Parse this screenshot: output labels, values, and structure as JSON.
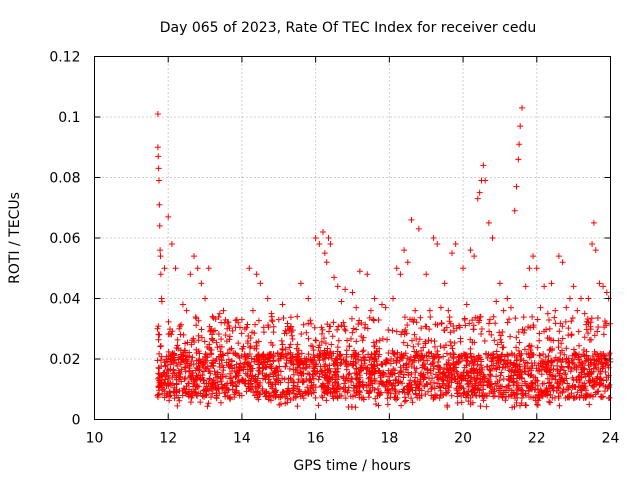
{
  "chart_data": {
    "type": "scatter",
    "title": "Day 065 of 2023, Rate Of TEC Index for receiver cedu",
    "xlabel": "GPS time / hours",
    "ylabel": "ROTI / TECUs",
    "xlim": [
      10,
      24
    ],
    "ylim": [
      0,
      0.12
    ],
    "x_ticks": [
      10,
      12,
      14,
      16,
      18,
      20,
      22,
      24
    ],
    "x_tick_labels": [
      "10",
      "12",
      "14",
      "16",
      "18",
      "20",
      "22",
      "24"
    ],
    "y_ticks": [
      0,
      0.02,
      0.04,
      0.06,
      0.08,
      0.1,
      0.12
    ],
    "y_tick_labels": [
      "0",
      "0.02",
      "0.04",
      "0.06",
      "0.08",
      "0.1",
      "0.12"
    ],
    "grid": true,
    "marker": "+",
    "color": "#ff0000",
    "series": [
      {
        "name": "ROTI",
        "x": [
          11.72,
          11.72,
          11.73,
          11.74,
          11.75,
          11.76,
          11.77,
          11.78,
          11.79,
          11.8,
          11.82,
          11.83,
          11.9,
          12.0,
          12.1,
          12.2,
          12.3,
          12.6,
          12.7,
          12.8,
          12.9,
          13.0,
          13.1,
          13.4,
          13.6,
          13.9,
          14.2,
          14.4,
          14.5,
          14.7,
          15.0,
          15.3,
          15.6,
          15.8,
          16.0,
          16.1,
          16.2,
          16.25,
          16.3,
          16.35,
          16.4,
          16.5,
          16.6,
          16.8,
          17.0,
          17.2,
          17.4,
          17.6,
          17.9,
          18.2,
          18.3,
          18.4,
          18.5,
          18.6,
          18.8,
          19.0,
          19.2,
          19.3,
          19.5,
          19.7,
          19.8,
          20.0,
          20.2,
          20.3,
          20.4,
          20.45,
          20.5,
          20.55,
          20.6,
          20.7,
          20.8,
          21.0,
          21.2,
          21.4,
          21.45,
          21.5,
          21.52,
          21.55,
          21.6,
          21.7,
          21.8,
          21.9,
          22.0,
          22.2,
          22.4,
          22.6,
          22.7,
          22.9,
          23.0,
          23.2,
          23.4,
          23.5,
          23.55,
          23.6,
          23.7,
          23.8,
          23.9,
          23.95,
          12.4,
          12.5,
          13.2,
          13.5,
          14.0,
          14.3,
          14.8,
          15.1,
          15.5,
          16.7,
          17.1,
          17.5,
          17.8,
          18.1,
          18.7,
          19.1,
          19.4,
          19.6,
          20.1,
          20.9,
          21.1,
          21.3,
          22.1,
          22.3,
          22.5,
          22.8,
          23.1,
          23.3
        ],
        "y": [
          0.101,
          0.09,
          0.087,
          0.083,
          0.079,
          0.071,
          0.064,
          0.056,
          0.054,
          0.048,
          0.04,
          0.039,
          0.05,
          0.067,
          0.058,
          0.05,
          0.03,
          0.048,
          0.054,
          0.05,
          0.045,
          0.04,
          0.05,
          0.035,
          0.03,
          0.032,
          0.05,
          0.048,
          0.045,
          0.04,
          0.033,
          0.03,
          0.045,
          0.04,
          0.06,
          0.058,
          0.062,
          0.055,
          0.052,
          0.06,
          0.058,
          0.047,
          0.044,
          0.043,
          0.042,
          0.049,
          0.048,
          0.04,
          0.037,
          0.05,
          0.048,
          0.056,
          0.052,
          0.066,
          0.063,
          0.048,
          0.06,
          0.058,
          0.045,
          0.055,
          0.058,
          0.05,
          0.056,
          0.054,
          0.073,
          0.075,
          0.079,
          0.084,
          0.079,
          0.065,
          0.06,
          0.045,
          0.04,
          0.069,
          0.077,
          0.086,
          0.091,
          0.097,
          0.103,
          0.044,
          0.05,
          0.054,
          0.05,
          0.044,
          0.045,
          0.054,
          0.052,
          0.04,
          0.044,
          0.04,
          0.04,
          0.058,
          0.065,
          0.056,
          0.045,
          0.044,
          0.042,
          0.04,
          0.038,
          0.036,
          0.034,
          0.036,
          0.033,
          0.036,
          0.035,
          0.038,
          0.034,
          0.039,
          0.037,
          0.036,
          0.038,
          0.04,
          0.036,
          0.036,
          0.037,
          0.036,
          0.038,
          0.039,
          0.036,
          0.037,
          0.037,
          0.035,
          0.036,
          0.037,
          0.036,
          0.035
        ]
      }
    ],
    "dense_band": {
      "x_range": [
        11.7,
        24.0
      ],
      "y_floor": 0.004,
      "y_typical": [
        0.007,
        0.022
      ],
      "y_upper_scatter": 0.034
    }
  }
}
